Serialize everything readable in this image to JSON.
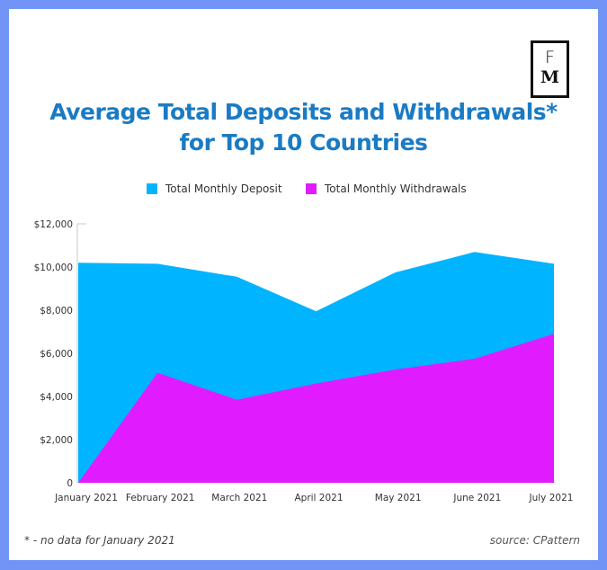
{
  "logo": {
    "line1": "F",
    "line2": "M"
  },
  "title": {
    "line1": "Average Total Deposits and Withdrawals*",
    "line2": "for Top 10 Countries"
  },
  "colors": {
    "frame": "#7294f7",
    "title": "#1a7bc4",
    "deposit": "#00b4ff",
    "withdrawal": "#e01cff",
    "axis": "#c8c8c8"
  },
  "footer": {
    "note": "* - no data for January 2021",
    "source": "source: CPattern"
  },
  "chart_data": {
    "type": "area",
    "title": "Average Total Deposits and Withdrawals* for Top 10 Countries",
    "xlabel": "",
    "ylabel": "",
    "categories": [
      "January 2021",
      "February 2021",
      "March 2021",
      "April 2021",
      "May 2021",
      "June 2021",
      "July 2021"
    ],
    "series": [
      {
        "name": "Total Monthly Deposit",
        "color": "#00b4ff",
        "values": [
          10200,
          10150,
          9550,
          7950,
          9750,
          10700,
          10150
        ]
      },
      {
        "name": "Total Monthly Withdrawals",
        "color": "#e01cff",
        "values": [
          0,
          5100,
          3850,
          4600,
          5250,
          5750,
          6900
        ]
      }
    ],
    "ylim": [
      0,
      12000
    ],
    "yticks": [
      0,
      2000,
      4000,
      6000,
      8000,
      10000,
      12000
    ],
    "ytick_labels": [
      "0",
      "$2,000",
      "$4,000",
      "$6,000",
      "$8,000",
      "$10,000",
      "$12,000"
    ],
    "grid": false,
    "legend": "top-center",
    "overlapping": true
  }
}
